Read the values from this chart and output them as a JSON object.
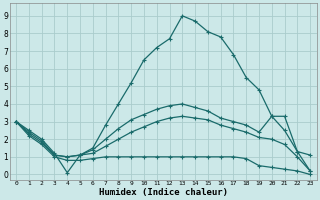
{
  "xlabel": "Humidex (Indice chaleur)",
  "bg_color": "#cce8e8",
  "grid_color": "#aacccc",
  "line_color": "#1a6b6b",
  "xlim": [
    -0.5,
    23.5
  ],
  "ylim": [
    -0.3,
    9.7
  ],
  "xticks": [
    0,
    1,
    2,
    3,
    4,
    5,
    6,
    7,
    8,
    9,
    10,
    11,
    12,
    13,
    14,
    15,
    16,
    17,
    18,
    19,
    20,
    21,
    22,
    23
  ],
  "yticks": [
    0,
    1,
    2,
    3,
    4,
    5,
    6,
    7,
    8,
    9
  ],
  "line1_x": [
    0,
    1,
    2,
    3,
    4,
    5,
    6,
    7,
    8,
    9,
    10,
    11,
    12,
    13,
    14,
    15,
    16,
    17,
    18,
    19,
    20,
    21,
    22,
    23
  ],
  "line1_y": [
    3.0,
    2.5,
    2.0,
    1.2,
    0.1,
    1.1,
    1.5,
    2.8,
    4.0,
    5.2,
    6.5,
    7.2,
    7.7,
    9.0,
    8.7,
    8.1,
    7.8,
    6.8,
    5.5,
    4.8,
    3.3,
    3.3,
    1.3,
    1.1
  ],
  "line2_x": [
    0,
    1,
    2,
    3,
    4,
    5,
    6,
    7,
    8,
    9,
    10,
    11,
    12,
    13,
    14,
    15,
    16,
    17,
    18,
    19,
    20,
    21,
    22,
    23
  ],
  "line2_y": [
    3.0,
    2.4,
    1.9,
    1.1,
    1.0,
    1.1,
    1.4,
    2.0,
    2.6,
    3.1,
    3.4,
    3.7,
    3.9,
    4.0,
    3.8,
    3.6,
    3.2,
    3.0,
    2.8,
    2.4,
    3.3,
    2.5,
    1.3,
    0.2
  ],
  "line3_x": [
    0,
    1,
    2,
    3,
    4,
    5,
    6,
    7,
    8,
    9,
    10,
    11,
    12,
    13,
    14,
    15,
    16,
    17,
    18,
    19,
    20,
    21,
    22,
    23
  ],
  "line3_y": [
    3.0,
    2.3,
    1.8,
    1.1,
    1.0,
    1.1,
    1.2,
    1.6,
    2.0,
    2.4,
    2.7,
    3.0,
    3.2,
    3.3,
    3.2,
    3.1,
    2.8,
    2.6,
    2.4,
    2.1,
    2.0,
    1.7,
    1.0,
    0.2
  ],
  "line4_x": [
    0,
    1,
    2,
    3,
    4,
    5,
    6,
    7,
    8,
    9,
    10,
    11,
    12,
    13,
    14,
    15,
    16,
    17,
    18,
    19,
    20,
    21,
    22,
    23
  ],
  "line4_y": [
    3.0,
    2.2,
    1.7,
    1.0,
    0.8,
    0.8,
    0.9,
    1.0,
    1.0,
    1.0,
    1.0,
    1.0,
    1.0,
    1.0,
    1.0,
    1.0,
    1.0,
    1.0,
    0.9,
    0.5,
    0.4,
    0.3,
    0.2,
    0.0
  ]
}
